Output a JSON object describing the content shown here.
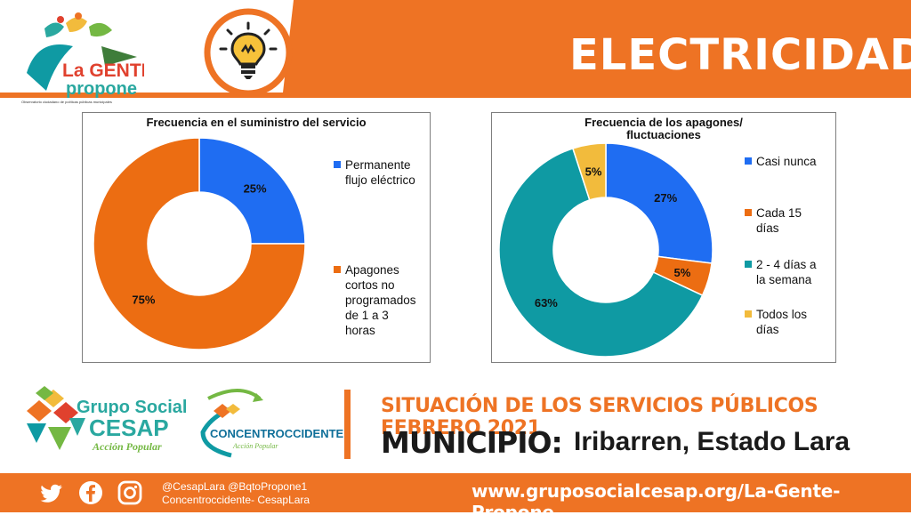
{
  "header": {
    "title": "ELECTRICIDAD",
    "logo_text_line1": "La GENTE",
    "logo_text_line2": "propone",
    "logo_caption": "Observatorio ciudadano de políticas públicas municipales"
  },
  "colors": {
    "orange": "#ee7324",
    "blue": "#1f6df2",
    "teal": "#0f9aa3",
    "gold": "#f2bb3c",
    "donut_orange": "#ec6d12"
  },
  "chart_data": [
    {
      "type": "pie",
      "title": "Frecuencia en el suministro del servicio",
      "categories": [
        "Permanente\nflujo eléctrico",
        "Apagones\ncortos no\nprogramados\nde 1 a 3\nhoras"
      ],
      "values": [
        25,
        75
      ],
      "labels": [
        "25%",
        "75%"
      ],
      "colors": [
        "#1f6df2",
        "#ec6d12"
      ],
      "legend": "right"
    },
    {
      "type": "pie",
      "title": "Frecuencia de los apagones/\nfluctuaciones",
      "categories": [
        "Casi nunca",
        "Cada 15\ndías",
        "2 - 4 días a\nla semana",
        "Todos los\ndías"
      ],
      "values": [
        27,
        5,
        63,
        5
      ],
      "labels": [
        "27%",
        "5%",
        "63%",
        "5%"
      ],
      "colors": [
        "#1f6df2",
        "#ec6d12",
        "#0f9aa3",
        "#f2bb3c"
      ],
      "legend": "right"
    }
  ],
  "bottom": {
    "cesap_line1": "Grupo Social",
    "cesap_line2": "CESAP",
    "cesap_line3": "Acción Popular",
    "concentro_name": "CONCENTROCCIDENTE",
    "concentro_sub": "Acción Popular",
    "situation_title": "SITUACIÓN DE LOS SERVICIOS PÚBLICOS FEBRERO 2021",
    "municipio_label": "MUNICIPIO:",
    "municipio_value": "Iribarren, Estado Lara"
  },
  "footer": {
    "handles_line1": "@CesapLara @BqtoPropone1",
    "handles_line2": "Concentroccidente-  CesapLara",
    "website": "www.gruposocialcesap.org/La-Gente-Propone",
    "icons": [
      "twitter-icon",
      "facebook-icon",
      "instagram-icon"
    ]
  }
}
